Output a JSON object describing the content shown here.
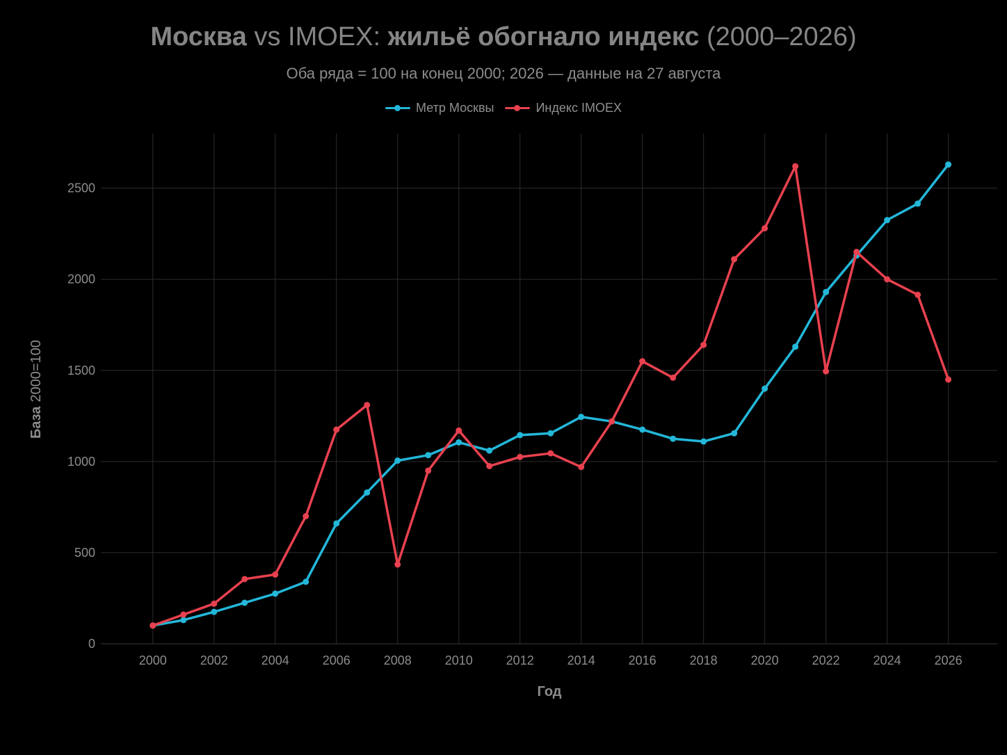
{
  "header": {
    "title_part1": "Москва",
    "title_part2": " vs IMOEX: ",
    "title_part3": "жильё обогнало индекс",
    "title_part4": " (2000–2026)",
    "subtitle": "Оба ряда = 100 на конец 2000; 2026 — данные на 27 августа"
  },
  "chart_data": {
    "type": "line",
    "title": "Москва vs IMOEX: жильё обогнало индекс (2000–2026)",
    "subtitle": "Оба ряда = 100 на конец 2000; 2026 — данные на 27 августа",
    "xlabel": "Год",
    "ylabel_bold": "База",
    "ylabel_rest": "2000=100",
    "x": [
      2000,
      2001,
      2002,
      2003,
      2004,
      2005,
      2006,
      2007,
      2008,
      2009,
      2010,
      2011,
      2012,
      2013,
      2014,
      2015,
      2016,
      2017,
      2018,
      2019,
      2020,
      2021,
      2022,
      2023,
      2024,
      2025,
      2026
    ],
    "xticks": [
      2000,
      2002,
      2004,
      2006,
      2008,
      2010,
      2012,
      2014,
      2016,
      2018,
      2020,
      2022,
      2024,
      2026
    ],
    "yticks": [
      0,
      500,
      1000,
      1500,
      2000,
      2500
    ],
    "xlim": [
      1998.3,
      2027.6
    ],
    "ylim": [
      0,
      2800
    ],
    "grid": true,
    "legend_position": "top-center",
    "series": [
      {
        "name": "Метр Москвы",
        "color": "#23b7d9",
        "values": [
          100,
          130,
          175,
          225,
          275,
          340,
          660,
          830,
          1005,
          1035,
          1105,
          1060,
          1145,
          1155,
          1245,
          1220,
          1175,
          1125,
          1110,
          1155,
          1400,
          1630,
          1930,
          2130,
          2325,
          2415,
          2630
        ]
      },
      {
        "name": "Индекс IMOEX",
        "color": "#e8414f",
        "values": [
          100,
          160,
          220,
          355,
          380,
          700,
          1175,
          1310,
          435,
          950,
          1170,
          975,
          1025,
          1045,
          970,
          1220,
          1550,
          1460,
          1640,
          2110,
          2280,
          2620,
          1495,
          2150,
          2000,
          1915,
          1450
        ]
      }
    ]
  }
}
